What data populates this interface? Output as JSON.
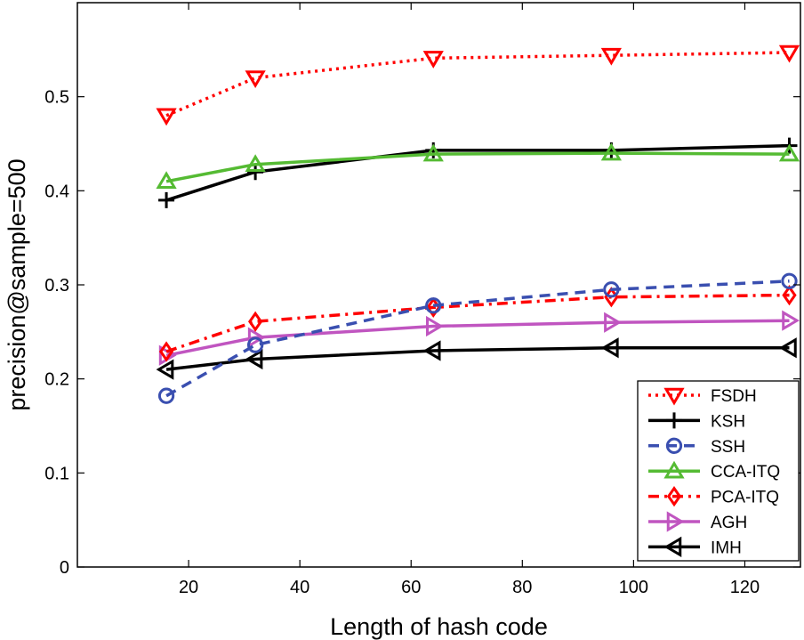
{
  "chart_data": {
    "type": "line",
    "title": "",
    "xlabel": "Length of hash code",
    "ylabel": "precision@sample=500",
    "xlim": [
      0,
      130
    ],
    "ylim": [
      0,
      0.6
    ],
    "xticks": [
      20,
      40,
      60,
      80,
      100,
      120
    ],
    "yticks": [
      0,
      0.1,
      0.2,
      0.3,
      0.4,
      0.5
    ],
    "ytick_labels": [
      "0",
      "0.1",
      "0.2",
      "0.3",
      "0.4",
      "0.5"
    ],
    "grid": false,
    "legend_position": "bottom-right",
    "x": [
      16,
      32,
      64,
      96,
      128
    ],
    "series": [
      {
        "name": "FSDH",
        "values": [
          0.48,
          0.52,
          0.541,
          0.544,
          0.547
        ],
        "color": "#ff0000",
        "dash": "dotted",
        "marker": "triangle-down"
      },
      {
        "name": "KSH",
        "values": [
          0.39,
          0.42,
          0.443,
          0.443,
          0.448
        ],
        "color": "#000000",
        "dash": "solid",
        "marker": "plus"
      },
      {
        "name": "SSH",
        "values": [
          0.182,
          0.236,
          0.278,
          0.295,
          0.304
        ],
        "color": "#3a4fb0",
        "dash": "dashed",
        "marker": "circle"
      },
      {
        "name": "CCA-ITQ",
        "values": [
          0.41,
          0.428,
          0.439,
          0.44,
          0.439
        ],
        "color": "#55bb33",
        "dash": "solid",
        "marker": "triangle-up"
      },
      {
        "name": "PCA-ITQ",
        "values": [
          0.229,
          0.261,
          0.276,
          0.287,
          0.289
        ],
        "color": "#ff0000",
        "dash": "dashdot",
        "marker": "diamond"
      },
      {
        "name": "AGH",
        "values": [
          0.225,
          0.244,
          0.256,
          0.26,
          0.262
        ],
        "color": "#c055c0",
        "dash": "solid",
        "marker": "triangle-right"
      },
      {
        "name": "IMH",
        "values": [
          0.21,
          0.221,
          0.23,
          0.233,
          0.233
        ],
        "color": "#000000",
        "dash": "solid",
        "marker": "triangle-left"
      }
    ]
  }
}
